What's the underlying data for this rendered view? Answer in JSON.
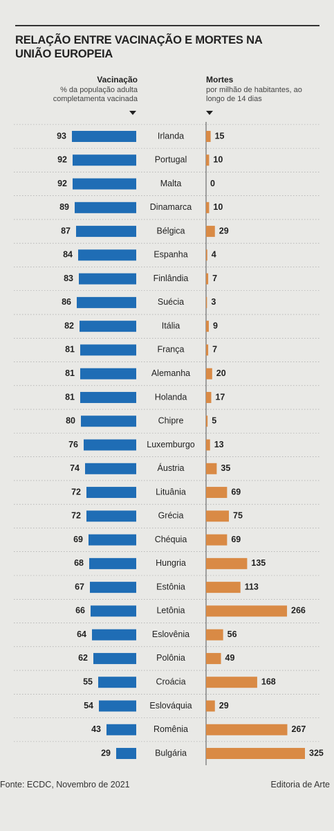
{
  "chart_data": {
    "type": "butterfly-bar",
    "title": "RELAÇÃO ENTRE VACINAÇÃO E MORTES NA UNIÃO EUROPEIA",
    "categories": [
      "Irlanda",
      "Portugal",
      "Malta",
      "Dinamarca",
      "Bélgica",
      "Espanha",
      "Finlândia",
      "Suécia",
      "Itália",
      "França",
      "Alemanha",
      "Holanda",
      "Chipre",
      "Luxemburgo",
      "Áustria",
      "Lituânia",
      "Grécia",
      "Chéquia",
      "Hungria",
      "Estônia",
      "Letônia",
      "Eslovênia",
      "Polônia",
      "Croácia",
      "Eslováquia",
      "Romênia",
      "Bulgária"
    ],
    "series": [
      {
        "name": "Vacinação",
        "description": "% da população adulta completamenta vacinada",
        "color": "#1f6db5",
        "values": [
          93,
          92,
          92,
          89,
          87,
          84,
          83,
          86,
          82,
          81,
          81,
          81,
          80,
          76,
          74,
          72,
          72,
          69,
          68,
          67,
          66,
          64,
          62,
          55,
          54,
          43,
          29
        ]
      },
      {
        "name": "Mortes",
        "description": "por milhão de habitantes, ao longo de 14 dias",
        "color": "#d98a45",
        "values": [
          15,
          10,
          0,
          10,
          29,
          4,
          7,
          3,
          9,
          7,
          20,
          17,
          5,
          13,
          35,
          69,
          75,
          69,
          135,
          113,
          266,
          56,
          49,
          168,
          29,
          267,
          325
        ]
      }
    ],
    "source": "Fonte: ECDC, Novembro de 2021",
    "credit": "Editoria de Arte"
  }
}
